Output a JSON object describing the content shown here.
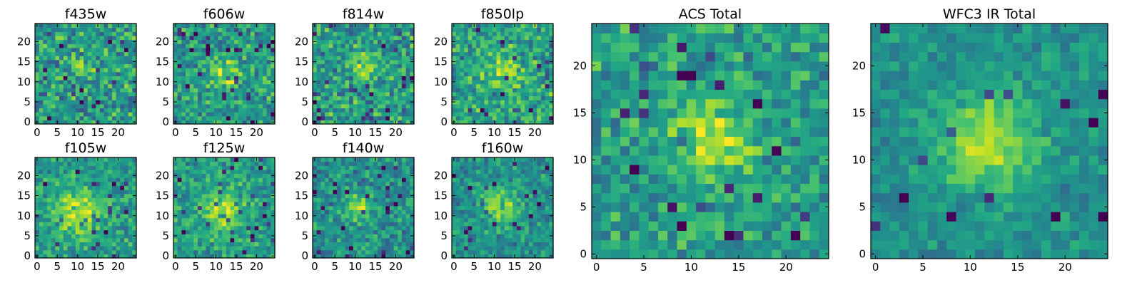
{
  "chart_data": [
    {
      "type": "heatmap",
      "title": "f435w",
      "colormap": "viridis",
      "x_ticks": [
        "0",
        "5",
        "10",
        "15",
        "20"
      ],
      "y_ticks": [
        "0",
        "5",
        "10",
        "15",
        "20"
      ],
      "xlim": [
        0,
        25
      ],
      "ylim": [
        0,
        25
      ],
      "grid_size": 25,
      "peak": {
        "x": 11,
        "y": 13,
        "amplitude": 0.15,
        "sigma": 2.5
      },
      "noise": 0.42,
      "base": 0.55,
      "seed": 11
    },
    {
      "type": "heatmap",
      "title": "f606w",
      "colormap": "viridis",
      "x_ticks": [
        "0",
        "5",
        "10",
        "15",
        "20"
      ],
      "y_ticks": [
        "0",
        "5",
        "10",
        "15",
        "20"
      ],
      "xlim": [
        0,
        25
      ],
      "ylim": [
        0,
        25
      ],
      "grid_size": 25,
      "peak": {
        "x": 12,
        "y": 12,
        "amplitude": 0.3,
        "sigma": 2.5
      },
      "noise": 0.38,
      "base": 0.55,
      "seed": 23
    },
    {
      "type": "heatmap",
      "title": "f814w",
      "colormap": "viridis",
      "x_ticks": [
        "0",
        "5",
        "10",
        "15",
        "20"
      ],
      "y_ticks": [
        "0",
        "5",
        "10",
        "15",
        "20"
      ],
      "xlim": [
        0,
        25
      ],
      "ylim": [
        0,
        25
      ],
      "grid_size": 25,
      "peak": {
        "x": 12,
        "y": 13,
        "amplitude": 0.25,
        "sigma": 2.5
      },
      "noise": 0.42,
      "base": 0.55,
      "seed": 37
    },
    {
      "type": "heatmap",
      "title": "f850lp",
      "colormap": "viridis",
      "x_ticks": [
        "0",
        "5",
        "10",
        "15",
        "20"
      ],
      "y_ticks": [
        "0",
        "5",
        "10",
        "15",
        "20"
      ],
      "xlim": [
        0,
        25
      ],
      "ylim": [
        0,
        25
      ],
      "grid_size": 25,
      "peak": {
        "x": 12,
        "y": 13,
        "amplitude": 0.25,
        "sigma": 3
      },
      "noise": 0.4,
      "base": 0.58,
      "seed": 41
    },
    {
      "type": "heatmap",
      "title": "f105w",
      "colormap": "viridis",
      "x_ticks": [
        "0",
        "5",
        "10",
        "15",
        "20"
      ],
      "y_ticks": [
        "0",
        "5",
        "10",
        "15",
        "20"
      ],
      "xlim": [
        0,
        25
      ],
      "ylim": [
        0,
        25
      ],
      "grid_size": 25,
      "peak": {
        "x": 10,
        "y": 11,
        "amplitude": 0.35,
        "sigma": 4
      },
      "noise": 0.3,
      "base": 0.55,
      "seed": 53
    },
    {
      "type": "heatmap",
      "title": "f125w",
      "colormap": "viridis",
      "x_ticks": [
        "0",
        "5",
        "10",
        "15",
        "20"
      ],
      "y_ticks": [
        "0",
        "5",
        "10",
        "15",
        "20"
      ],
      "xlim": [
        0,
        25
      ],
      "ylim": [
        0,
        25
      ],
      "grid_size": 25,
      "peak": {
        "x": 12,
        "y": 11,
        "amplitude": 0.35,
        "sigma": 3.5
      },
      "noise": 0.32,
      "base": 0.55,
      "seed": 67
    },
    {
      "type": "heatmap",
      "title": "f140w",
      "colormap": "viridis",
      "x_ticks": [
        "0",
        "5",
        "10",
        "15",
        "20"
      ],
      "y_ticks": [
        "0",
        "5",
        "10",
        "15",
        "20"
      ],
      "xlim": [
        0,
        25
      ],
      "ylim": [
        0,
        25
      ],
      "grid_size": 25,
      "peak": {
        "x": 11,
        "y": 12,
        "amplitude": 0.35,
        "sigma": 2.5
      },
      "noise": 0.34,
      "base": 0.5,
      "seed": 79
    },
    {
      "type": "heatmap",
      "title": "f160w",
      "colormap": "viridis",
      "x_ticks": [
        "0",
        "5",
        "10",
        "15",
        "20"
      ],
      "y_ticks": [
        "0",
        "5",
        "10",
        "15",
        "20"
      ],
      "xlim": [
        0,
        25
      ],
      "ylim": [
        0,
        25
      ],
      "grid_size": 25,
      "peak": {
        "x": 11,
        "y": 12,
        "amplitude": 0.4,
        "sigma": 3
      },
      "noise": 0.3,
      "base": 0.5,
      "seed": 83
    },
    {
      "type": "heatmap",
      "title": "ACS Total",
      "colormap": "viridis",
      "x_ticks": [
        "0",
        "5",
        "10",
        "15",
        "20"
      ],
      "y_ticks": [
        "0",
        "5",
        "10",
        "15",
        "20"
      ],
      "xlim": [
        0,
        25
      ],
      "ylim": [
        0,
        25
      ],
      "grid_size": 25,
      "peak": {
        "x": 12,
        "y": 12,
        "amplitude": 0.35,
        "sigma": 2.8
      },
      "noise": 0.34,
      "base": 0.55,
      "seed": 97
    },
    {
      "type": "heatmap",
      "title": "WFC3 IR Total",
      "colormap": "viridis",
      "x_ticks": [
        "0",
        "5",
        "10",
        "15",
        "20"
      ],
      "y_ticks": [
        "0",
        "5",
        "10",
        "15",
        "20"
      ],
      "xlim": [
        0,
        25
      ],
      "ylim": [
        0,
        25
      ],
      "grid_size": 25,
      "peak": {
        "x": 12,
        "y": 12,
        "amplitude": 0.4,
        "sigma": 3.5
      },
      "noise": 0.22,
      "base": 0.5,
      "seed": 101
    }
  ]
}
